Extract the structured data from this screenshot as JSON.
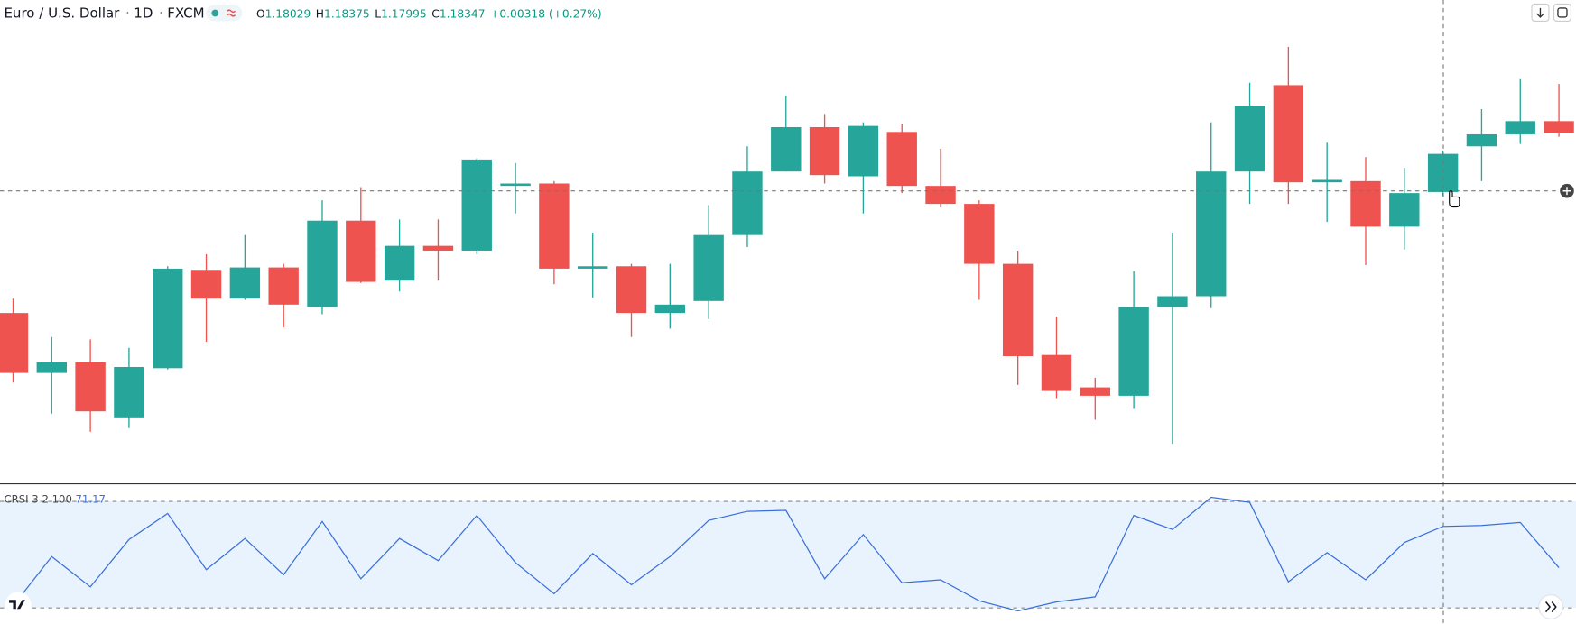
{
  "header": {
    "symbol": "Euro / U.S. Dollar",
    "interval": "1D",
    "source": "FXCM",
    "ohlc": [
      {
        "letter": "O",
        "text": "1.18029"
      },
      {
        "letter": "H",
        "text": "1.18375"
      },
      {
        "letter": "L",
        "text": "1.17995"
      },
      {
        "letter": "C",
        "text": "1.18347"
      }
    ],
    "change": "+0.00318 (+0.27%)"
  },
  "chart_data": [
    {
      "type": "candlestick",
      "up_color": "#26a69a",
      "down_color": "#ef5350",
      "ylim": [
        1.156,
        1.1963
      ],
      "open": [
        1.1702,
        1.1652,
        1.1661,
        1.1615,
        1.1656,
        1.1738,
        1.1714,
        1.174,
        1.1707,
        1.1779,
        1.1729,
        1.1758,
        1.1754,
        1.1808,
        1.181,
        1.1739,
        1.1741,
        1.1702,
        1.1712,
        1.1767,
        1.182,
        1.1857,
        1.1816,
        1.1853,
        1.1808,
        1.1793,
        1.1743,
        1.1667,
        1.164,
        1.1633,
        1.1707,
        1.1716,
        1.182,
        1.1892,
        1.1811,
        1.1812,
        1.1774,
        1.18029,
        1.1841,
        1.1851,
        1.1862
      ],
      "high": [
        1.1714,
        1.1682,
        1.168,
        1.1673,
        1.1741,
        1.1751,
        1.1767,
        1.1743,
        1.1796,
        1.1807,
        1.178,
        1.178,
        1.1831,
        1.1827,
        1.1812,
        1.1769,
        1.1743,
        1.1743,
        1.1792,
        1.1841,
        1.1883,
        1.1868,
        1.1861,
        1.186,
        1.1839,
        1.1796,
        1.1754,
        1.1699,
        1.1648,
        1.1737,
        1.1769,
        1.1861,
        1.1894,
        1.1924,
        1.1844,
        1.1832,
        1.1823,
        1.18375,
        1.1872,
        1.1897,
        1.1893
      ],
      "low": [
        1.1644,
        1.1618,
        1.1603,
        1.1606,
        1.1655,
        1.1678,
        1.1713,
        1.169,
        1.1701,
        1.1727,
        1.172,
        1.1729,
        1.1751,
        1.1785,
        1.1726,
        1.1715,
        1.1682,
        1.1689,
        1.1697,
        1.1757,
        1.182,
        1.181,
        1.1785,
        1.1802,
        1.179,
        1.1713,
        1.1642,
        1.1631,
        1.1613,
        1.1622,
        1.1593,
        1.1706,
        1.1793,
        1.1793,
        1.1778,
        1.1742,
        1.1755,
        1.17995,
        1.1812,
        1.1843,
        1.1849
      ],
      "close": [
        1.1652,
        1.1661,
        1.162,
        1.1657,
        1.1739,
        1.1714,
        1.174,
        1.1709,
        1.1779,
        1.1728,
        1.1758,
        1.1754,
        1.183,
        1.181,
        1.1739,
        1.1741,
        1.1702,
        1.1709,
        1.1767,
        1.182,
        1.1857,
        1.1817,
        1.1858,
        1.1808,
        1.1793,
        1.1743,
        1.1666,
        1.1637,
        1.1633,
        1.1707,
        1.1716,
        1.182,
        1.1875,
        1.1811,
        1.1813,
        1.1774,
        1.1802,
        1.18347,
        1.1851,
        1.1862,
        1.1852
      ]
    },
    {
      "type": "line",
      "name": "CRSI 3 2 100",
      "value_label": "71.17",
      "color": "#3a6fd8",
      "band_fill": "#e8f3fd",
      "ylim": [
        -2.1,
        102.8
      ],
      "bands": [
        90,
        10
      ],
      "values": [
        11.5,
        48.5,
        25.8,
        61.3,
        80.9,
        38.7,
        62.1,
        34.9,
        74.9,
        31.9,
        62.1,
        45.5,
        79.4,
        44.0,
        20.6,
        50.8,
        27.4,
        48.5,
        75.7,
        82.5,
        83.2,
        31.9,
        65.1,
        28.9,
        31.1,
        15.3,
        7.7,
        14.5,
        18.3,
        79.4,
        68.9,
        93.0,
        89.2,
        29.6,
        51.5,
        31.1,
        59.1,
        71.17,
        71.9,
        74.2,
        40.2
      ]
    }
  ]
}
